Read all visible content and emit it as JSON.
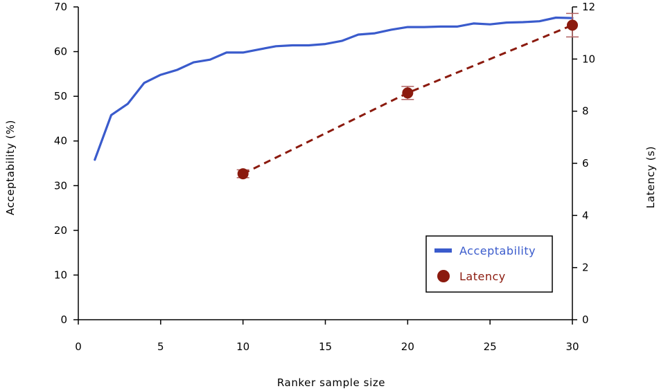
{
  "chart_data": {
    "type": "line",
    "xlabel": "Ranker sample size",
    "ylabel_left": "Acceptability (%)",
    "ylabel_right": "Latency (s)",
    "xlim": [
      0,
      30
    ],
    "ylim_left": [
      0,
      70
    ],
    "ylim_right": [
      0,
      12
    ],
    "x_ticks": [
      0,
      5,
      10,
      15,
      20,
      25,
      30
    ],
    "y_left_ticks": [
      0,
      10,
      20,
      30,
      40,
      50,
      60,
      70
    ],
    "y_right_ticks": [
      0,
      2,
      4,
      6,
      8,
      10,
      12
    ],
    "grid": false,
    "legend_position": "bottom-right",
    "series": [
      {
        "name": "Acceptability",
        "axis": "left",
        "style": "solid-line",
        "color": "#3a5bcc",
        "x": [
          1,
          2,
          3,
          4,
          5,
          6,
          7,
          8,
          9,
          10,
          11,
          12,
          13,
          14,
          15,
          16,
          17,
          18,
          19,
          20,
          21,
          22,
          23,
          24,
          25,
          26,
          27,
          28,
          29,
          30
        ],
        "y": [
          35.8,
          45.8,
          48.3,
          53.0,
          54.8,
          55.9,
          57.6,
          58.2,
          59.8,
          59.8,
          60.5,
          61.2,
          61.4,
          61.4,
          61.7,
          62.4,
          63.8,
          64.1,
          64.9,
          65.5,
          65.5,
          65.6,
          65.6,
          66.3,
          66.1,
          66.5,
          66.6,
          66.8,
          67.6,
          67.5
        ]
      },
      {
        "name": "Latency",
        "axis": "right",
        "style": "dashed-line-with-markers",
        "color": "#8b1a0e",
        "x": [
          10,
          20,
          30
        ],
        "y": [
          5.6,
          8.7,
          11.3
        ],
        "error": [
          0.15,
          0.25,
          0.45
        ]
      }
    ]
  }
}
